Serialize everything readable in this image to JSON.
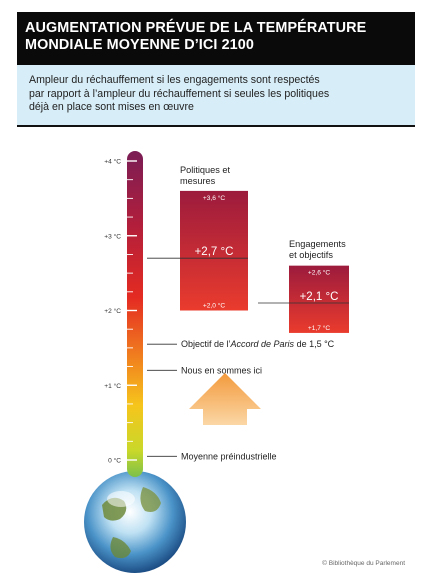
{
  "header": {
    "title_line1": "AUGMENTATION PRÉVUE DE LA TEMPÉRATURE",
    "title_line2": "MONDIALE MOYENNE D’ICI 2100"
  },
  "subtitle": {
    "line1": "Ampleur du réchauffement si les engagements sont respectés",
    "line2": "par rapport à l’ampleur du réchauffement si seules les politiques",
    "line3": "déjà en place sont mises en œuvre"
  },
  "credit": "© Bibliothèque du Parlement",
  "colors": {
    "header_bg": "#0a0a0a",
    "subtitle_bg": "#d7edf7",
    "bar_dark": "#b0243a",
    "bar_light": "#e8322f",
    "arrow": "#f6a24a"
  },
  "chart_data": {
    "type": "bar",
    "ylim": [
      0,
      4.2
    ],
    "y_ticks": [
      {
        "value": 0,
        "label": "0 °C"
      },
      {
        "value": 1,
        "label": "+1 °C"
      },
      {
        "value": 2,
        "label": "+2 °C"
      },
      {
        "value": 3,
        "label": "+3 °C"
      },
      {
        "value": 4,
        "label": "+4 °C"
      }
    ],
    "bars": [
      {
        "name_line1": "Politiques et",
        "name_line2": "mesures",
        "low": 2.0,
        "high": 3.6,
        "mid": 2.7,
        "low_label": "+2,0 °C",
        "high_label": "+3,6 °C",
        "mid_label": "+2,7 °C"
      },
      {
        "name_line1": "Engagements",
        "name_line2": "et objectifs",
        "low": 1.7,
        "high": 2.6,
        "mid": 2.1,
        "low_label": "+1,7 °C",
        "high_label": "+2,6 °C",
        "mid_label": "+2,1 °C"
      }
    ],
    "annotations": [
      {
        "value": 1.55,
        "label_pre": "Objectif de l’",
        "label_em": "Accord de Paris",
        "label_post": " de 1,5 °C"
      },
      {
        "value": 1.2,
        "label_pre": "Nous en sommes ici",
        "label_em": "",
        "label_post": ""
      },
      {
        "value": 0.05,
        "label_pre": "Moyenne préindustrielle",
        "label_em": "",
        "label_post": ""
      }
    ]
  }
}
